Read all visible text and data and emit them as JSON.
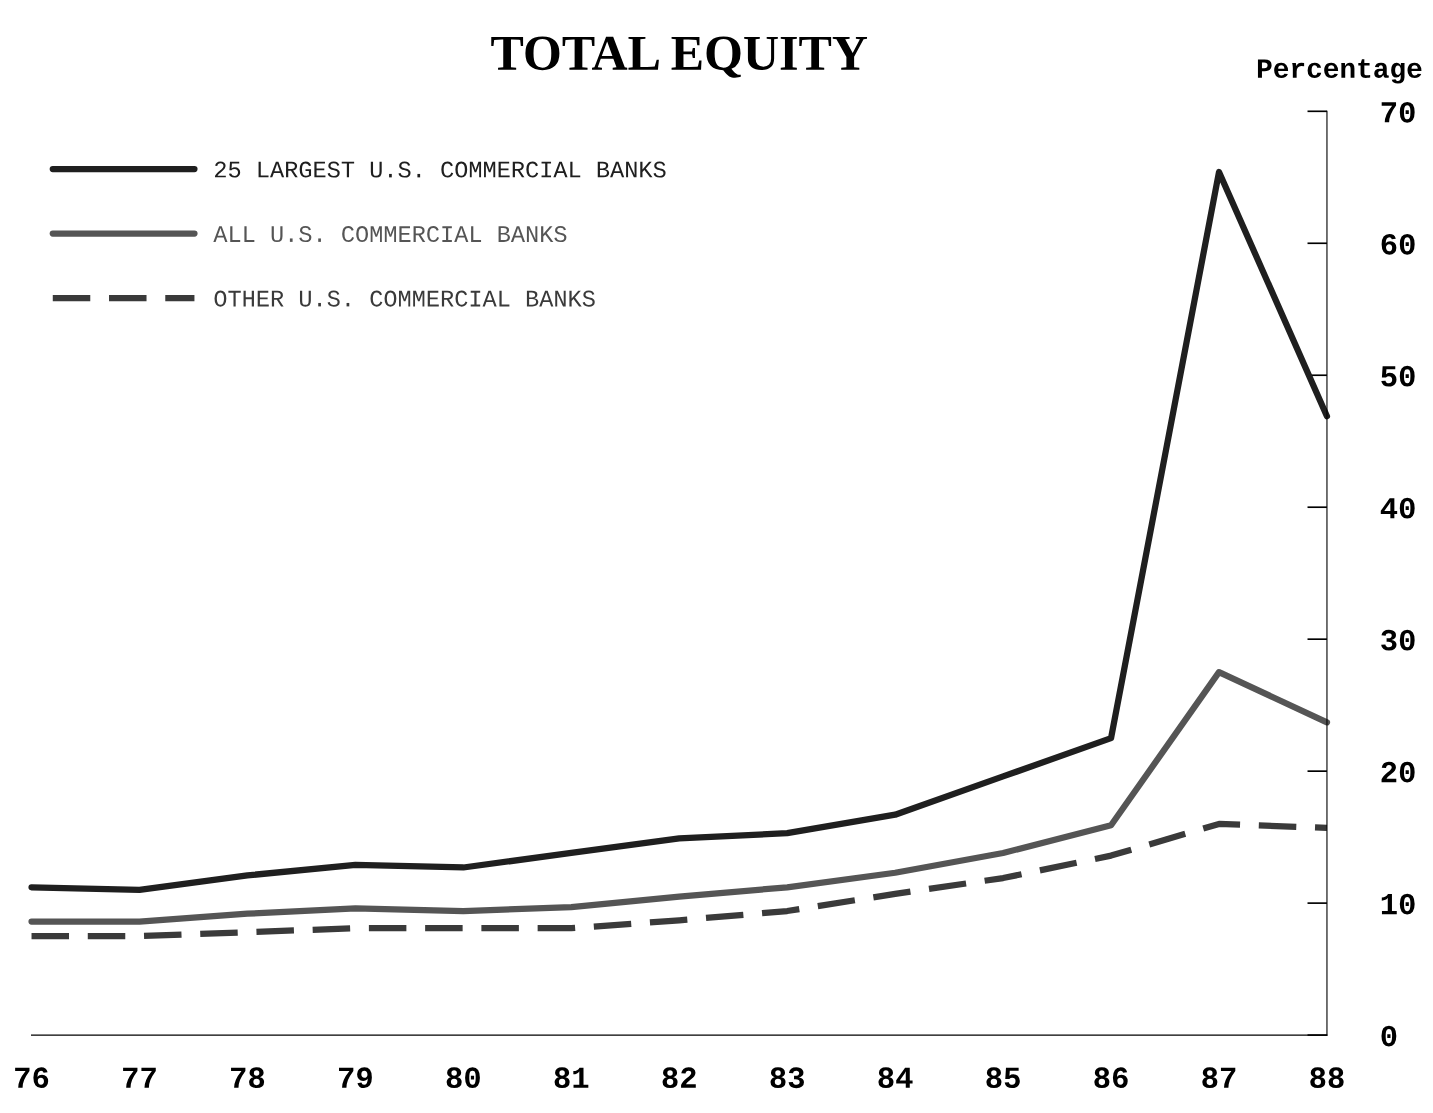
{
  "chart_data": {
    "type": "line",
    "title": "TOTAL EQUITY",
    "ylabel": "Percentage",
    "x": [
      76,
      77,
      78,
      79,
      80,
      81,
      82,
      83,
      84,
      85,
      86,
      87,
      88
    ],
    "xlim": [
      76,
      88
    ],
    "xticks": [
      76,
      77,
      78,
      79,
      80,
      81,
      82,
      83,
      84,
      85,
      86,
      87,
      88
    ],
    "ylim": [
      0,
      70
    ],
    "yticks": [
      0,
      10,
      20,
      30,
      40,
      50,
      60,
      70
    ],
    "grid": false,
    "legend": "top left",
    "marker": "none",
    "series": [
      {
        "name": "25 LARGEST U.S. COMMERCIAL BANKS",
        "color": "#1f1f1f",
        "line_style": "solid",
        "values": [
          11.2,
          11.0,
          12.1,
          12.9,
          12.7,
          13.8,
          14.9,
          15.3,
          16.7,
          19.6,
          22.5,
          65.4,
          46.9
        ]
      },
      {
        "name": "ALL U.S. COMMERCIAL BANKS",
        "color": "#555555",
        "line_style": "solid",
        "values": [
          8.6,
          8.6,
          9.2,
          9.6,
          9.4,
          9.7,
          10.5,
          11.2,
          12.3,
          13.8,
          15.9,
          27.5,
          23.7
        ]
      },
      {
        "name": "OTHER U.S. COMMERCIAL BANKS",
        "color": "#3a3a3a",
        "line_style": "dashed",
        "values": [
          7.5,
          7.5,
          7.8,
          8.1,
          8.1,
          8.1,
          8.7,
          9.4,
          10.7,
          11.9,
          13.6,
          16.0,
          15.7
        ]
      }
    ]
  }
}
